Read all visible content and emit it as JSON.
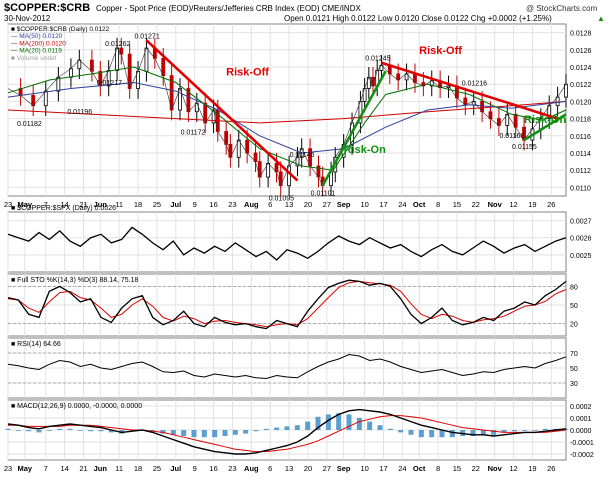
{
  "header": {
    "symbol": "$COPPER:$CRB",
    "title": "Copper - Spot Price (EOD)/Reuters/Jefferies CRB Index (EOD)  CME/INDX",
    "watermark": "@ StockCharts.com",
    "date": "30-Nov-2012",
    "ohlc": "Open 0.0121  High 0.0122  Low 0.0120  Close 0.0122  Chg +0.0002 (+1.25%)",
    "up_arrow": "▲"
  },
  "chart_data": [
    {
      "type": "candlestick",
      "legend": [
        "■ $COPPER:$CRB (Daily) 0.0122",
        "— MA(50) 0.0120",
        "— MA(200) 0.0120",
        "— MA(20) 0.0119",
        "■ Volume undef"
      ],
      "legend_colors": [
        "#000000",
        "#3040a0",
        "#d00000",
        "#007000",
        "#a0a0a0"
      ],
      "ylim": [
        0.0109,
        0.0129
      ],
      "yticks": [
        "0.0128",
        "0.0126",
        "0.0124",
        "0.0122",
        "0.0120",
        "0.0118",
        "0.0116",
        "0.0114",
        "0.0112",
        "0.0110"
      ],
      "close_path": [
        [
          0,
          0.01215
        ],
        [
          6,
          0.01207
        ],
        [
          12,
          0.01195
        ],
        [
          18,
          0.01212
        ],
        [
          24,
          0.01228
        ],
        [
          30,
          0.01238
        ],
        [
          34,
          0.01248
        ],
        [
          40,
          0.01235
        ],
        [
          44,
          0.01218
        ],
        [
          48,
          0.01236
        ],
        [
          52,
          0.01262
        ],
        [
          54,
          0.01255
        ],
        [
          58,
          0.01215
        ],
        [
          62,
          0.01235
        ],
        [
          66,
          0.01262
        ],
        [
          70,
          0.0125
        ],
        [
          74,
          0.0123
        ],
        [
          78,
          0.0119
        ],
        [
          82,
          0.01215
        ],
        [
          86,
          0.01188
        ],
        [
          90,
          0.01198
        ],
        [
          94,
          0.01175
        ],
        [
          98,
          0.0119
        ],
        [
          100,
          0.01165
        ],
        [
          104,
          0.0115
        ],
        [
          106,
          0.01135
        ],
        [
          110,
          0.01155
        ],
        [
          114,
          0.0114
        ],
        [
          118,
          0.0113
        ],
        [
          120,
          0.01112
        ],
        [
          124,
          0.01128
        ],
        [
          128,
          0.01118
        ],
        [
          130,
          0.01102
        ],
        [
          134,
          0.01125
        ],
        [
          138,
          0.01135
        ],
        [
          140,
          0.01145
        ],
        [
          144,
          0.01125
        ],
        [
          148,
          0.01112
        ],
        [
          150,
          0.01102
        ],
        [
          154,
          0.01118
        ],
        [
          156,
          0.01135
        ],
        [
          160,
          0.0115
        ],
        [
          164,
          0.01175
        ],
        [
          168,
          0.012
        ],
        [
          170,
          0.01215
        ],
        [
          172,
          0.01228
        ],
        [
          174,
          0.01218
        ],
        [
          176,
          0.01236
        ],
        [
          178,
          0.01242
        ],
        [
          182,
          0.01232
        ],
        [
          186,
          0.01225
        ],
        [
          190,
          0.01232
        ],
        [
          194,
          0.01222
        ],
        [
          198,
          0.01218
        ],
        [
          202,
          0.01224
        ],
        [
          206,
          0.01216
        ],
        [
          210,
          0.01218
        ],
        [
          214,
          0.01204
        ],
        [
          218,
          0.01196
        ],
        [
          222,
          0.012
        ],
        [
          226,
          0.01188
        ],
        [
          230,
          0.0118
        ],
        [
          234,
          0.01172
        ],
        [
          238,
          0.01185
        ],
        [
          242,
          0.0117
        ],
        [
          246,
          0.01155
        ],
        [
          250,
          0.01168
        ],
        [
          254,
          0.0118
        ],
        [
          258,
          0.01195
        ],
        [
          262,
          0.01205
        ],
        [
          266,
          0.0122
        ]
      ],
      "ma50_path": [
        [
          0,
          0.01205
        ],
        [
          30,
          0.01215
        ],
        [
          60,
          0.01222
        ],
        [
          80,
          0.01212
        ],
        [
          100,
          0.0119
        ],
        [
          120,
          0.0116
        ],
        [
          140,
          0.0114
        ],
        [
          160,
          0.01145
        ],
        [
          180,
          0.0117
        ],
        [
          200,
          0.0119
        ],
        [
          220,
          0.01196
        ],
        [
          240,
          0.01192
        ],
        [
          266,
          0.012
        ]
      ],
      "ma200_path": [
        [
          0,
          0.0119
        ],
        [
          40,
          0.01185
        ],
        [
          80,
          0.0118
        ],
        [
          120,
          0.01175
        ],
        [
          160,
          0.0118
        ],
        [
          200,
          0.01188
        ],
        [
          240,
          0.01195
        ],
        [
          266,
          0.012
        ]
      ],
      "ma20_path": [
        [
          0,
          0.0121
        ],
        [
          20,
          0.01225
        ],
        [
          40,
          0.01232
        ],
        [
          60,
          0.0124
        ],
        [
          80,
          0.01222
        ],
        [
          100,
          0.01185
        ],
        [
          120,
          0.01145
        ],
        [
          140,
          0.01125
        ],
        [
          155,
          0.0112
        ],
        [
          170,
          0.01175
        ],
        [
          180,
          0.01208
        ],
        [
          200,
          0.0122
        ],
        [
          220,
          0.01208
        ],
        [
          240,
          0.01185
        ],
        [
          255,
          0.01178
        ],
        [
          266,
          0.0119
        ]
      ],
      "price_labels": [
        {
          "text": "0.01262",
          "x": 52,
          "y": 0.01262
        },
        {
          "text": "0.01271",
          "x": 66,
          "y": 0.01271
        },
        {
          "text": "0.01196",
          "x": 34,
          "y": 0.01196
        },
        {
          "text": "0.01217",
          "x": 48,
          "y": 0.01217
        },
        {
          "text": "0.01182",
          "x": 10,
          "y": 0.01182
        },
        {
          "text": "0.01172",
          "x": 88,
          "y": 0.01172
        },
        {
          "text": "0.01146",
          "x": 140,
          "y": 0.01146
        },
        {
          "text": "0.01095",
          "x": 130,
          "y": 0.01095
        },
        {
          "text": "0.01101",
          "x": 150,
          "y": 0.01101
        },
        {
          "text": "0.01245",
          "x": 176,
          "y": 0.01245
        },
        {
          "text": "0.01216",
          "x": 222,
          "y": 0.01216
        },
        {
          "text": "0.01168",
          "x": 240,
          "y": 0.01168
        },
        {
          "text": "0.01155",
          "x": 246,
          "y": 0.01155
        }
      ],
      "annotations": [
        {
          "text": "Risk-Off",
          "x": 104,
          "y": 0.0123,
          "color": "#e00000"
        },
        {
          "text": "Risk-On",
          "x": 160,
          "y": 0.0114,
          "color": "#109010"
        },
        {
          "text": "Risk-Off",
          "x": 196,
          "y": 0.01255,
          "color": "#e00000"
        },
        {
          "text": "Risk-On",
          "x": 246,
          "y": 0.01175,
          "color": "#109010"
        }
      ],
      "trendlines": [
        {
          "color": "#e00000",
          "from": [
            66,
            0.01271
          ],
          "to": [
            138,
            0.01108
          ]
        },
        {
          "color": "#109010",
          "from": [
            150,
            0.01102
          ],
          "to": [
            180,
            0.01235
          ]
        },
        {
          "color": "#e00000",
          "from": [
            178,
            0.01245
          ],
          "to": [
            262,
            0.0118
          ]
        },
        {
          "color": "#109010",
          "from": [
            246,
            0.01155
          ],
          "to": [
            266,
            0.01185
          ]
        }
      ]
    },
    {
      "type": "line",
      "title": "■ $COPPER:$SPX (Daily) 0.0026",
      "ylim": [
        0.0024,
        0.00275
      ],
      "yticks": [
        "0.0027",
        "0.0026",
        "0.0025"
      ],
      "values": [
        0.00262,
        0.0026,
        0.00258,
        0.00263,
        0.00259,
        0.00264,
        0.00258,
        0.00255,
        0.0026,
        0.00262,
        0.00257,
        0.00259,
        0.00266,
        0.00262,
        0.00257,
        0.00253,
        0.00258,
        0.0025,
        0.00254,
        0.00251,
        0.00255,
        0.00252,
        0.00257,
        0.00253,
        0.00249,
        0.00252,
        0.00247,
        0.00253,
        0.00251,
        0.00248,
        0.00252,
        0.00257,
        0.00261,
        0.00258,
        0.00256,
        0.0026,
        0.00257,
        0.00254,
        0.00256,
        0.00252,
        0.00249,
        0.00253,
        0.00256,
        0.00252,
        0.0025,
        0.00254,
        0.00258,
        0.00255,
        0.00251,
        0.00254,
        0.00256,
        0.00252,
        0.00255,
        0.00258,
        0.0026
      ]
    },
    {
      "type": "line",
      "title": "■ Full STO %K(14,3) %D(3) 88.14, 75.18",
      "ylim": [
        0,
        100
      ],
      "yticks": [
        "80",
        "50",
        "20"
      ],
      "k": [
        62,
        58,
        35,
        30,
        72,
        80,
        70,
        55,
        60,
        30,
        22,
        45,
        60,
        65,
        30,
        18,
        25,
        40,
        20,
        15,
        30,
        22,
        18,
        20,
        15,
        12,
        25,
        20,
        15,
        40,
        60,
        78,
        85,
        90,
        88,
        82,
        85,
        80,
        60,
        35,
        20,
        30,
        45,
        25,
        18,
        22,
        30,
        25,
        40,
        45,
        55,
        50,
        65,
        75,
        88
      ],
      "d": [
        60,
        58,
        45,
        38,
        55,
        70,
        72,
        62,
        58,
        45,
        30,
        35,
        50,
        60,
        48,
        30,
        24,
        32,
        28,
        20,
        24,
        25,
        22,
        20,
        18,
        15,
        18,
        20,
        18,
        28,
        45,
        62,
        78,
        86,
        88,
        86,
        84,
        82,
        72,
        52,
        35,
        28,
        35,
        32,
        25,
        22,
        26,
        28,
        32,
        40,
        48,
        50,
        56,
        68,
        75
      ]
    },
    {
      "type": "line",
      "title": "■ RSI(14) 64.66",
      "ylim": [
        10,
        90
      ],
      "yticks": [
        "70",
        "50",
        "30"
      ],
      "values": [
        55,
        53,
        50,
        48,
        55,
        60,
        58,
        52,
        55,
        50,
        48,
        52,
        56,
        58,
        52,
        45,
        44,
        46,
        40,
        38,
        42,
        40,
        38,
        40,
        37,
        36,
        40,
        38,
        37,
        45,
        52,
        58,
        62,
        68,
        66,
        60,
        62,
        58,
        52,
        48,
        44,
        46,
        48,
        44,
        40,
        42,
        45,
        44,
        48,
        50,
        52,
        50,
        56,
        60,
        65
      ]
    },
    {
      "type": "line",
      "title": "■ MACD(12,26,9) 0.0000, -0.0000, 0.0000",
      "ylim": [
        -0.00025,
        0.00025
      ],
      "yticks": [
        "0.0002",
        "0.0001",
        "0.0000",
        "-0.0001",
        "-0.0002"
      ],
      "macd": [
        5e-05,
        4e-05,
        2e-05,
        1e-05,
        3e-05,
        4e-05,
        5e-05,
        4e-05,
        3e-05,
        2e-05,
        0.0,
        -2e-05,
        -1e-05,
        0.0,
        -2e-05,
        -5e-05,
        -8e-05,
        -0.00011,
        -0.00014,
        -0.00016,
        -0.00018,
        -0.00019,
        -0.0002,
        -0.0002,
        -0.00019,
        -0.00017,
        -0.00015,
        -0.00013,
        -0.0001,
        -5e-05,
        2e-05,
        8e-05,
        0.00013,
        0.00016,
        0.00017,
        0.00016,
        0.00015,
        0.00013,
        0.0001,
        7e-05,
        4e-05,
        2e-05,
        0.0,
        -2e-05,
        -3e-05,
        -4e-05,
        -4e-05,
        -5e-05,
        -4e-05,
        -3e-05,
        -2e-05,
        -2e-05,
        -1e-05,
        0.0,
        1e-05
      ],
      "signal": [
        4e-05,
        4e-05,
        3e-05,
        3e-05,
        3e-05,
        3e-05,
        4e-05,
        4e-05,
        4e-05,
        3e-05,
        2e-05,
        1e-05,
        0.0,
        0.0,
        -1e-05,
        -2e-05,
        -4e-05,
        -6e-05,
        -8e-05,
        -0.0001,
        -0.00012,
        -0.00014,
        -0.00016,
        -0.00017,
        -0.00018,
        -0.00018,
        -0.00017,
        -0.00016,
        -0.00014,
        -0.00012,
        -9e-05,
        -5e-05,
        -1e-05,
        3e-05,
        7e-05,
        9e-05,
        0.00011,
        0.00012,
        0.00012,
        0.00011,
        0.0001,
        8e-05,
        6e-05,
        4e-05,
        2e-05,
        1e-05,
        0.0,
        -1e-05,
        -2e-05,
        -2e-05,
        -2e-05,
        -2e-05,
        -2e-05,
        -1e-05,
        0.0
      ]
    }
  ],
  "x_axis": {
    "labels": [
      "23",
      "May",
      "7",
      "14",
      "21",
      "Jun",
      "11",
      "18",
      "25",
      "Jul",
      "9",
      "16",
      "23",
      "Aug",
      "6",
      "13",
      "20",
      "27",
      "Sep",
      "10",
      "17",
      "24",
      "Oct",
      "8",
      "15",
      "22",
      "Nov",
      "12",
      "19",
      "26"
    ],
    "bold": [
      "May",
      "Jun",
      "Jul",
      "Aug",
      "Sep",
      "Oct",
      "Nov"
    ],
    "pos": [
      0,
      8,
      18,
      27,
      36,
      44,
      53,
      62,
      71,
      80,
      89,
      98,
      107,
      116,
      125,
      134,
      143,
      152,
      160,
      170,
      179,
      188,
      196,
      205,
      214,
      223,
      232,
      241,
      250,
      259
    ]
  }
}
